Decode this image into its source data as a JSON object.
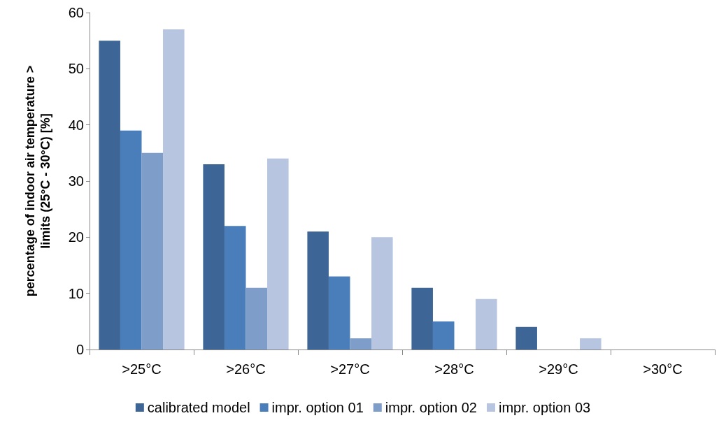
{
  "chart_data": {
    "type": "bar",
    "ylabel": "percentage of indoor air temperature >\nlimits (25°C - 30°C) [%]",
    "categories": [
      ">25°C",
      ">26°C",
      ">27°C",
      ">28°C",
      ">29°C",
      ">30°C"
    ],
    "series": [
      {
        "name": "calibrated model",
        "color": "#3d6595",
        "values": [
          55,
          33,
          21,
          11,
          4,
          0
        ]
      },
      {
        "name": "impr. option 01",
        "color": "#4a7ebb",
        "values": [
          39,
          22,
          13,
          5,
          0,
          0
        ]
      },
      {
        "name": "impr. option 02",
        "color": "#7f9dc9",
        "values": [
          35,
          11,
          2,
          0,
          0,
          0
        ]
      },
      {
        "name": "impr. option 03",
        "color": "#b7c5e0",
        "values": [
          57,
          34,
          20,
          9,
          2,
          0
        ]
      }
    ],
    "ylim": [
      0,
      60
    ],
    "yticks": [
      0,
      10,
      20,
      30,
      40,
      50,
      60
    ],
    "grid": false,
    "legend": "bottom"
  }
}
